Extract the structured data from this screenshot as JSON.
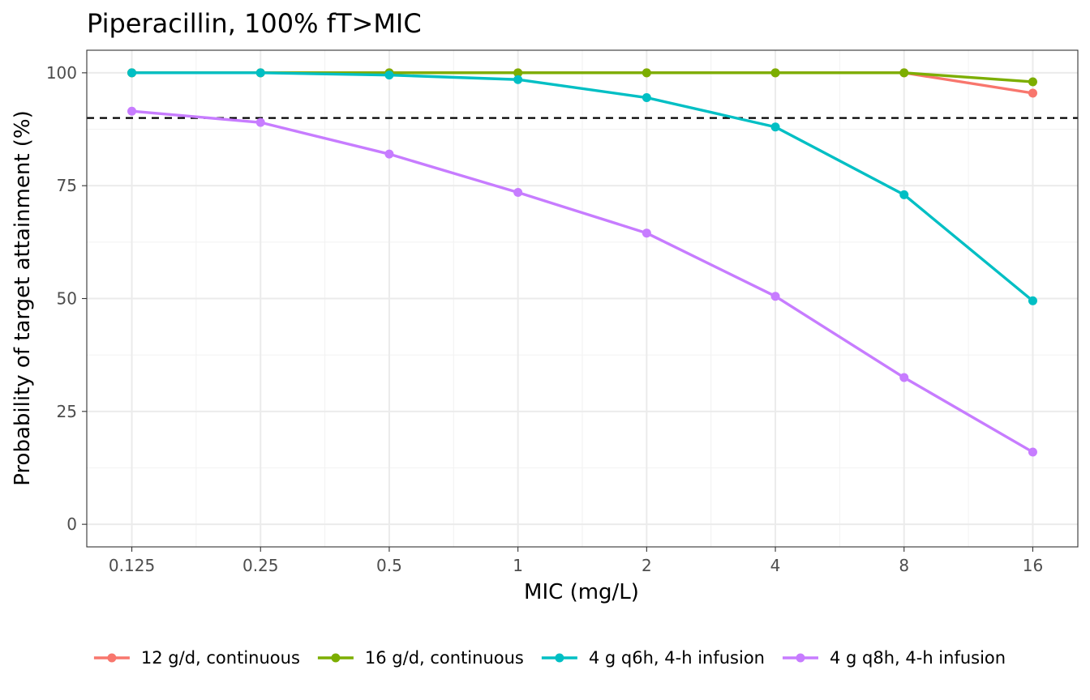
{
  "chart_data": {
    "type": "line",
    "title": "Piperacillin, 100% fT>MIC",
    "xlabel": "MIC (mg/L)",
    "ylabel": "Probability of target attainment (%)",
    "x_scale": "log2",
    "x": [
      0.125,
      0.25,
      0.5,
      1,
      2,
      4,
      8,
      16
    ],
    "x_tick_labels": [
      "0.125",
      "0.25",
      "0.5",
      "1",
      "2",
      "4",
      "8",
      "16"
    ],
    "ylim": [
      -5,
      105
    ],
    "y_ticks": [
      0,
      25,
      50,
      75,
      100
    ],
    "y_tick_labels": [
      "0",
      "25",
      "50",
      "75",
      "100"
    ],
    "reference_line": {
      "y": 90,
      "style": "dashed",
      "color": "#000000"
    },
    "grid": true,
    "legend_position": "bottom",
    "series": [
      {
        "name": "12 g/d, continuous",
        "color": "#F8766D",
        "values": [
          100,
          100,
          100,
          100,
          100,
          100,
          100,
          95.5
        ]
      },
      {
        "name": "16 g/d, continuous",
        "color": "#7CAE00",
        "values": [
          100,
          100,
          100,
          100,
          100,
          100,
          100,
          98
        ]
      },
      {
        "name": "4 g q6h, 4-h infusion",
        "color": "#00BFC4",
        "values": [
          100,
          100,
          99.5,
          98.5,
          94.5,
          88,
          73,
          49.5
        ]
      },
      {
        "name": "4 g q8h, 4-h infusion",
        "color": "#C77CFF",
        "values": [
          91.5,
          89,
          82,
          73.5,
          64.5,
          50.5,
          32.5,
          16
        ]
      }
    ]
  }
}
